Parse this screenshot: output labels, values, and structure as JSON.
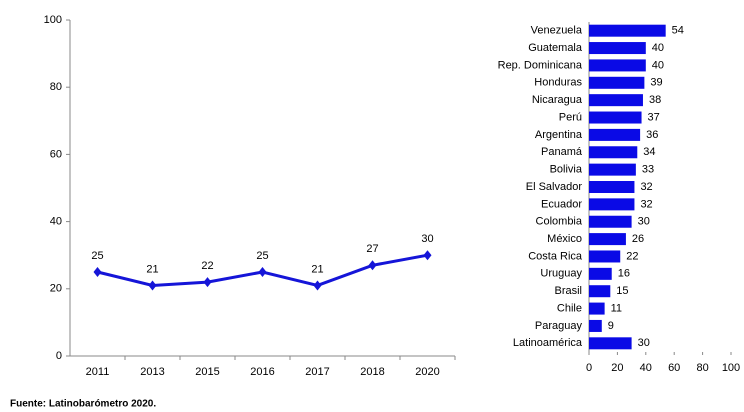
{
  "chart_data": [
    {
      "type": "line",
      "categories": [
        "2011",
        "2013",
        "2015",
        "2016",
        "2017",
        "2018",
        "2020"
      ],
      "values": [
        25,
        21,
        22,
        25,
        21,
        27,
        30
      ],
      "color": "#1515d8",
      "ylim": [
        0,
        100
      ],
      "yticks": [
        0,
        20,
        40,
        60,
        80,
        100
      ],
      "grid": false
    },
    {
      "type": "hbar",
      "categories": [
        "Venezuela",
        "Guatemala",
        "Rep. Dominicana",
        "Honduras",
        "Nicaragua",
        "Perú",
        "Argentina",
        "Panamá",
        "Bolivia",
        "El Salvador",
        "Ecuador",
        "Colombia",
        "México",
        "Costa Rica",
        "Uruguay",
        "Brasil",
        "Chile",
        "Paraguay",
        "Latinoamérica"
      ],
      "values": [
        54,
        40,
        40,
        39,
        38,
        37,
        36,
        34,
        33,
        32,
        32,
        30,
        26,
        22,
        16,
        15,
        11,
        9,
        30
      ],
      "color": "#0a0ae6",
      "xlim": [
        0,
        100
      ],
      "xticks": [
        0,
        20,
        40,
        60,
        80,
        100
      ],
      "grid": false
    }
  ],
  "source": "Fuente: Latinobarómetro 2020."
}
